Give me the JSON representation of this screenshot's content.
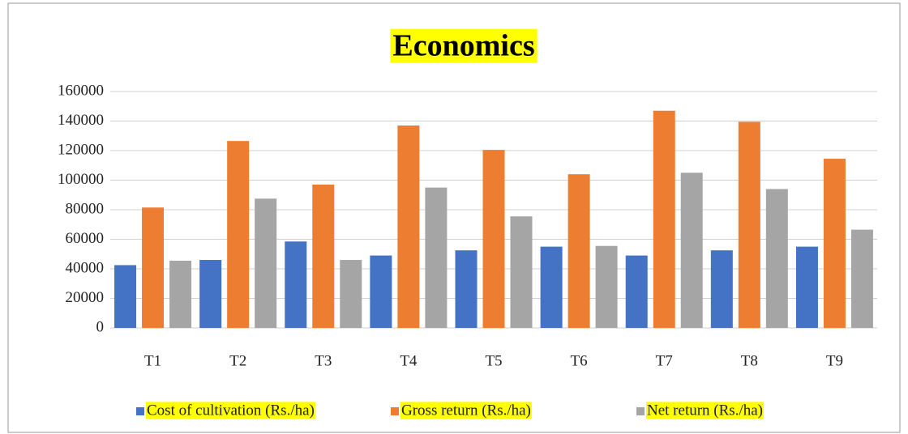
{
  "chart_data": {
    "type": "bar",
    "title": "Economics",
    "categories": [
      "T1",
      "T2",
      "T3",
      "T4",
      "T5",
      "T6",
      "T7",
      "T8",
      "T9"
    ],
    "series": [
      {
        "name": "Cost of cultivation (Rs./ha)",
        "color": "#4472c4",
        "values": [
          42500,
          46000,
          58500,
          49000,
          52500,
          55000,
          49000,
          52500,
          55000
        ]
      },
      {
        "name": "Gross return (Rs./ha)",
        "color": "#ed7d31",
        "values": [
          81500,
          126500,
          97000,
          137000,
          120500,
          104000,
          147000,
          139500,
          114500
        ]
      },
      {
        "name": "Net return (Rs./ha)",
        "color": "#a5a5a5",
        "values": [
          45500,
          87500,
          46000,
          95000,
          75500,
          55500,
          105000,
          94000,
          66500
        ]
      }
    ],
    "ylim": [
      0,
      160000
    ],
    "yticks": [
      0,
      20000,
      40000,
      60000,
      80000,
      100000,
      120000,
      140000,
      160000
    ],
    "grid": true,
    "legend": "bottom"
  }
}
